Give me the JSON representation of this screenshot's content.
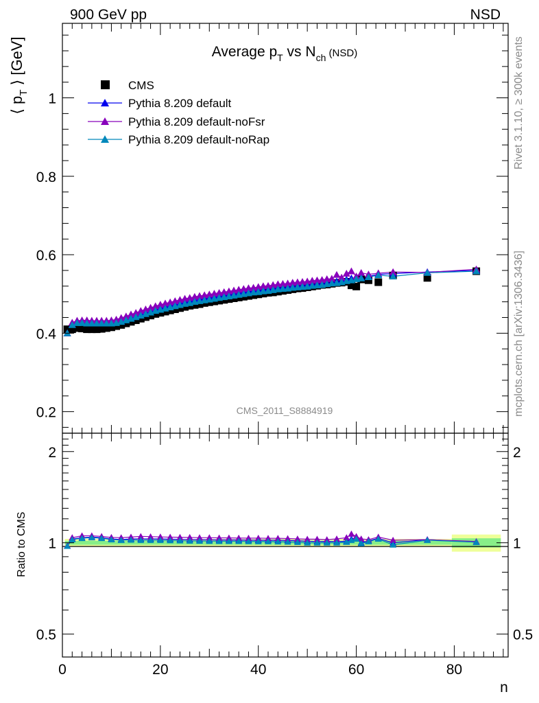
{
  "header": {
    "left": "900 GeV pp",
    "right": "NSD"
  },
  "side_text": {
    "version": "Rivet 3.1.10, ≥ 300k events",
    "source": "mcplots.cern.ch [arXiv:1306.3436]"
  },
  "watermark": "CMS_2011_S8884919",
  "title": {
    "main": "Average p",
    "sub1": "T",
    "mid": " vs N",
    "sub2": "ch",
    "tail": " (NSD)"
  },
  "colors": {
    "cms": "#000000",
    "default": "#0000ee",
    "noFsr": "#8800bb",
    "noRap": "#0088bb",
    "band_inner": "#88ee88",
    "band_outer": "#eeff99"
  },
  "chart_data": [
    {
      "type": "scatter",
      "panel": "main",
      "ylabel_parts": [
        "⟨ p",
        "T",
        " ⟩ [GeV]"
      ],
      "xlim": [
        0,
        91
      ],
      "ylim": [
        0.145,
        1.19
      ],
      "yticks": [
        0.2,
        0.4,
        0.6,
        0.8,
        1.0
      ],
      "ytick_labels": [
        "0.2",
        "0.4",
        "0.6",
        "0.8",
        "1"
      ],
      "legend_position": "top-left",
      "series": [
        {
          "name": "CMS",
          "marker": "square",
          "x": [
            1,
            2,
            3,
            4,
            5,
            6,
            7,
            8,
            9,
            10,
            11,
            12,
            13,
            14,
            15,
            16,
            17,
            18,
            19,
            20,
            21,
            22,
            23,
            24,
            25,
            26,
            27,
            28,
            29,
            30,
            31,
            32,
            33,
            34,
            35,
            36,
            37,
            38,
            39,
            40,
            41,
            42,
            43,
            44,
            45,
            46,
            47,
            48,
            49,
            50,
            51,
            52,
            53,
            54,
            55,
            56,
            57,
            58,
            59,
            60,
            61,
            62.5,
            64.5,
            67.5,
            74.5,
            84.5
          ],
          "y": [
            0.41,
            0.41,
            0.413,
            0.412,
            0.41,
            0.41,
            0.41,
            0.411,
            0.413,
            0.415,
            0.418,
            0.421,
            0.425,
            0.429,
            0.433,
            0.437,
            0.441,
            0.445,
            0.449,
            0.452,
            0.455,
            0.458,
            0.461,
            0.464,
            0.467,
            0.47,
            0.472,
            0.474,
            0.477,
            0.479,
            0.481,
            0.483,
            0.485,
            0.487,
            0.489,
            0.491,
            0.493,
            0.495,
            0.497,
            0.499,
            0.501,
            0.503,
            0.504,
            0.506,
            0.508,
            0.51,
            0.512,
            0.514,
            0.515,
            0.517,
            0.519,
            0.521,
            0.523,
            0.524,
            0.526,
            0.528,
            0.529,
            0.531,
            0.522,
            0.519,
            0.537,
            0.535,
            0.53,
            0.547,
            0.541,
            0.558
          ]
        },
        {
          "name": "Pythia 8.209 default",
          "marker": "triangle",
          "x": [
            1,
            2,
            3,
            4,
            5,
            6,
            7,
            8,
            9,
            10,
            11,
            12,
            13,
            14,
            15,
            16,
            17,
            18,
            19,
            20,
            21,
            22,
            23,
            24,
            25,
            26,
            27,
            28,
            29,
            30,
            31,
            32,
            33,
            34,
            35,
            36,
            37,
            38,
            39,
            40,
            41,
            42,
            43,
            44,
            45,
            46,
            47,
            48,
            49,
            50,
            51,
            52,
            53,
            54,
            55,
            56,
            57,
            58,
            59,
            60,
            61,
            62.5,
            64.5,
            67.5,
            74.5,
            84.5
          ],
          "y": [
            0.4,
            0.422,
            0.427,
            0.428,
            0.428,
            0.428,
            0.428,
            0.427,
            0.427,
            0.428,
            0.429,
            0.432,
            0.436,
            0.44,
            0.444,
            0.449,
            0.453,
            0.457,
            0.461,
            0.464,
            0.467,
            0.47,
            0.473,
            0.476,
            0.479,
            0.481,
            0.484,
            0.486,
            0.488,
            0.49,
            0.492,
            0.494,
            0.496,
            0.498,
            0.5,
            0.502,
            0.504,
            0.506,
            0.508,
            0.509,
            0.511,
            0.512,
            0.514,
            0.516,
            0.517,
            0.518,
            0.52,
            0.521,
            0.522,
            0.523,
            0.525,
            0.526,
            0.527,
            0.529,
            0.53,
            0.532,
            0.533,
            0.537,
            0.54,
            0.541,
            0.542,
            0.545,
            0.55,
            0.552,
            0.556,
            0.56
          ]
        },
        {
          "name": "Pythia 8.209 default-noFsr",
          "marker": "triangle",
          "x": [
            1,
            2,
            3,
            4,
            5,
            6,
            7,
            8,
            9,
            10,
            11,
            12,
            13,
            14,
            15,
            16,
            17,
            18,
            19,
            20,
            21,
            22,
            23,
            24,
            25,
            26,
            27,
            28,
            29,
            30,
            31,
            32,
            33,
            34,
            35,
            36,
            37,
            38,
            39,
            40,
            41,
            42,
            43,
            44,
            45,
            46,
            47,
            48,
            49,
            50,
            51,
            52,
            53,
            54,
            55,
            56,
            57,
            58,
            59,
            60,
            61,
            62.5,
            64.5,
            67.5,
            74.5,
            84.5
          ],
          "y": [
            0.4,
            0.427,
            0.432,
            0.433,
            0.433,
            0.432,
            0.432,
            0.432,
            0.432,
            0.433,
            0.435,
            0.439,
            0.443,
            0.448,
            0.452,
            0.457,
            0.461,
            0.465,
            0.469,
            0.473,
            0.476,
            0.479,
            0.482,
            0.485,
            0.488,
            0.49,
            0.493,
            0.495,
            0.497,
            0.499,
            0.501,
            0.503,
            0.505,
            0.507,
            0.509,
            0.511,
            0.513,
            0.515,
            0.516,
            0.518,
            0.52,
            0.521,
            0.523,
            0.525,
            0.526,
            0.527,
            0.529,
            0.53,
            0.531,
            0.532,
            0.534,
            0.535,
            0.536,
            0.538,
            0.539,
            0.549,
            0.542,
            0.552,
            0.558,
            0.545,
            0.554,
            0.55,
            0.553,
            0.556,
            0.555,
            0.563
          ]
        },
        {
          "name": "Pythia 8.209 default-noRap",
          "marker": "triangle",
          "x": [
            1,
            2,
            3,
            4,
            5,
            6,
            7,
            8,
            9,
            10,
            11,
            12,
            13,
            14,
            15,
            16,
            17,
            18,
            19,
            20,
            21,
            22,
            23,
            24,
            25,
            26,
            27,
            28,
            29,
            30,
            31,
            32,
            33,
            34,
            35,
            36,
            37,
            38,
            39,
            40,
            41,
            42,
            43,
            44,
            45,
            46,
            47,
            48,
            49,
            50,
            51,
            52,
            53,
            54,
            55,
            56,
            57,
            58,
            59,
            60,
            61,
            62.5,
            64.5,
            67.5,
            74.5,
            84.5
          ],
          "y": [
            0.4,
            0.421,
            0.426,
            0.426,
            0.425,
            0.425,
            0.425,
            0.425,
            0.425,
            0.425,
            0.426,
            0.429,
            0.433,
            0.437,
            0.441,
            0.445,
            0.449,
            0.453,
            0.457,
            0.46,
            0.463,
            0.466,
            0.469,
            0.472,
            0.475,
            0.477,
            0.48,
            0.482,
            0.484,
            0.486,
            0.488,
            0.49,
            0.492,
            0.494,
            0.496,
            0.498,
            0.5,
            0.502,
            0.504,
            0.505,
            0.507,
            0.508,
            0.51,
            0.512,
            0.513,
            0.514,
            0.516,
            0.517,
            0.518,
            0.519,
            0.521,
            0.522,
            0.523,
            0.525,
            0.527,
            0.528,
            0.53,
            0.533,
            0.535,
            0.538,
            0.54,
            0.543,
            0.548,
            0.545,
            0.554,
            0.558
          ]
        }
      ]
    },
    {
      "type": "line",
      "panel": "ratio",
      "ylabel": "Ratio to CMS",
      "xlabel": "n",
      "xlim": [
        0,
        91
      ],
      "ylim": [
        0.42,
        2.3
      ],
      "xticks": [
        0,
        20,
        40,
        60,
        80
      ],
      "xtick_labels": [
        "0",
        "20",
        "40",
        "60",
        "80"
      ],
      "yticks": [
        0.5,
        1,
        2
      ],
      "ytick_labels": [
        "0.5",
        "1",
        "2"
      ],
      "reference": 1.0,
      "bands": [
        {
          "x0": 0.5,
          "x1": 79.5,
          "inner": [
            0.985,
            1.015
          ],
          "outer": [
            0.97,
            1.03
          ]
        },
        {
          "x0": 79.5,
          "x1": 89.5,
          "inner": [
            0.965,
            1.035
          ],
          "outer": [
            0.935,
            1.065
          ]
        }
      ],
      "series": [
        {
          "name": "Pythia 8.209 default",
          "x": [
            1,
            2,
            4,
            6,
            8,
            10,
            12,
            14,
            16,
            18,
            20,
            22,
            24,
            26,
            28,
            30,
            32,
            34,
            36,
            38,
            40,
            42,
            44,
            46,
            48,
            50,
            52,
            54,
            56,
            58,
            59,
            60,
            61,
            62.5,
            64.5,
            67.5,
            74.5,
            84.5
          ],
          "y": [
            0.975,
            1.03,
            1.04,
            1.045,
            1.04,
            1.03,
            1.025,
            1.03,
            1.03,
            1.03,
            1.03,
            1.028,
            1.027,
            1.025,
            1.024,
            1.023,
            1.022,
            1.022,
            1.022,
            1.021,
            1.02,
            1.02,
            1.02,
            1.018,
            1.016,
            1.012,
            1.01,
            1.01,
            1.01,
            1.01,
            1.03,
            1.04,
            1.0,
            1.015,
            1.035,
            1.0,
            1.025,
            1.005
          ]
        },
        {
          "name": "Pythia 8.209 default-noFsr",
          "x": [
            1,
            2,
            4,
            6,
            8,
            10,
            12,
            14,
            16,
            18,
            20,
            22,
            24,
            26,
            28,
            30,
            32,
            34,
            36,
            38,
            40,
            42,
            44,
            46,
            48,
            50,
            52,
            54,
            56,
            58,
            59,
            60,
            61,
            62.5,
            64.5,
            67.5,
            74.5,
            84.5
          ],
          "y": [
            0.978,
            1.04,
            1.055,
            1.055,
            1.05,
            1.042,
            1.04,
            1.045,
            1.05,
            1.048,
            1.046,
            1.044,
            1.043,
            1.042,
            1.04,
            1.04,
            1.038,
            1.038,
            1.037,
            1.036,
            1.036,
            1.035,
            1.035,
            1.033,
            1.03,
            1.028,
            1.028,
            1.025,
            1.03,
            1.04,
            1.07,
            1.05,
            1.03,
            1.025,
            1.045,
            1.02,
            1.025,
            1.01
          ]
        },
        {
          "name": "Pythia 8.209 default-noRap",
          "x": [
            1,
            2,
            4,
            6,
            8,
            10,
            12,
            14,
            16,
            18,
            20,
            22,
            24,
            26,
            28,
            30,
            32,
            34,
            36,
            38,
            40,
            42,
            44,
            46,
            48,
            50,
            52,
            54,
            56,
            58,
            59,
            60,
            61,
            62.5,
            64.5,
            67.5,
            74.5,
            84.5
          ],
          "y": [
            0.975,
            1.025,
            1.035,
            1.04,
            1.035,
            1.025,
            1.02,
            1.022,
            1.02,
            1.02,
            1.02,
            1.018,
            1.017,
            1.015,
            1.014,
            1.013,
            1.012,
            1.012,
            1.012,
            1.011,
            1.01,
            1.01,
            1.008,
            1.006,
            1.004,
            1.0,
            1.0,
            1.0,
            1.0,
            1.005,
            1.02,
            1.03,
            0.995,
            1.01,
            1.03,
            0.985,
            1.02,
            1.005
          ]
        }
      ]
    }
  ]
}
